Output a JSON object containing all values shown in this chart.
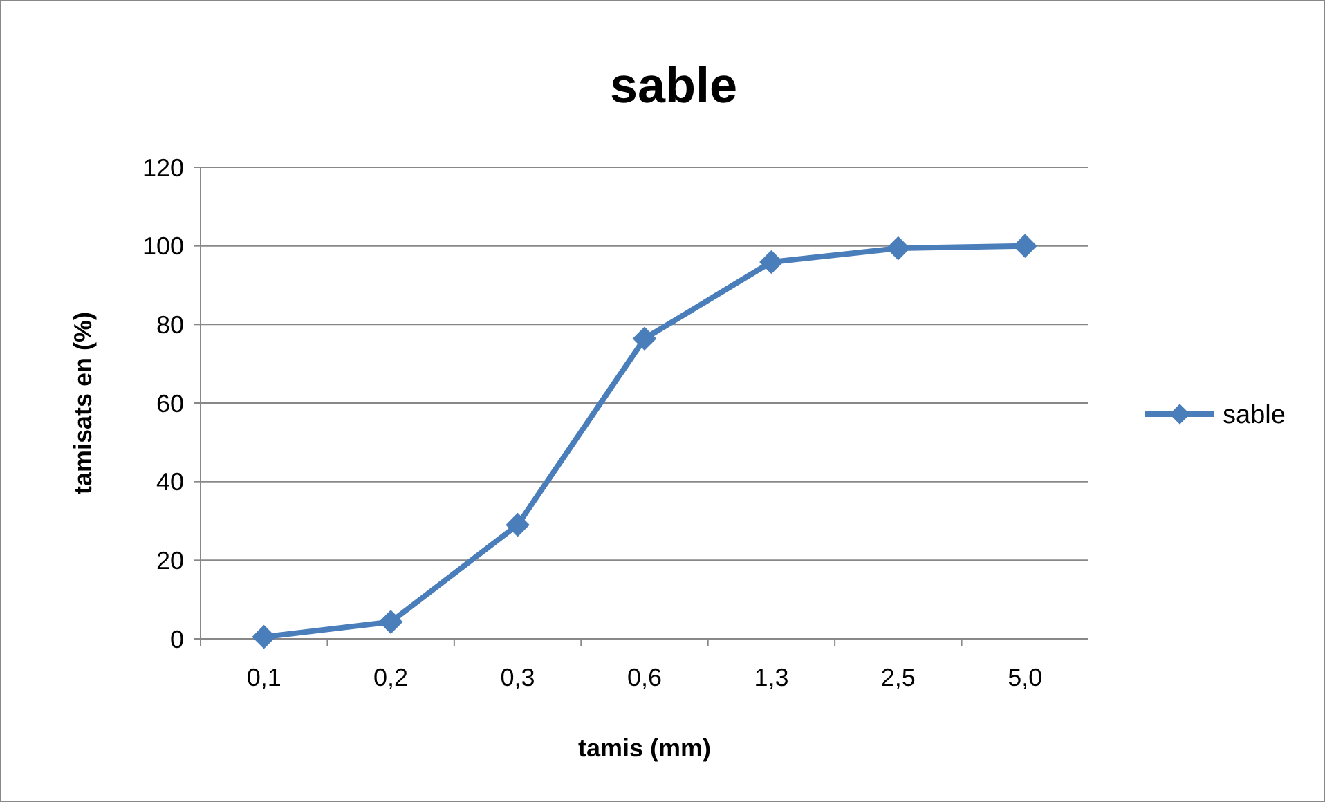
{
  "chart_data": {
    "type": "line",
    "title": "sable",
    "xlabel": "tamis (mm)",
    "ylabel": "tamisats en (%)",
    "categories": [
      "0,1",
      "0,2",
      "0,3",
      "0,6",
      "1,3",
      "2,5",
      "5,0"
    ],
    "series": [
      {
        "name": "sable",
        "color": "#4a7ebb",
        "values": [
          0.5,
          4.3,
          29,
          76.4,
          95.9,
          99.4,
          100
        ]
      }
    ],
    "ylim": [
      0,
      120
    ],
    "yticks": [
      0,
      20,
      40,
      60,
      80,
      100,
      120
    ],
    "grid": "y",
    "legend": "right",
    "marker": "diamond",
    "line_style": "solid"
  }
}
